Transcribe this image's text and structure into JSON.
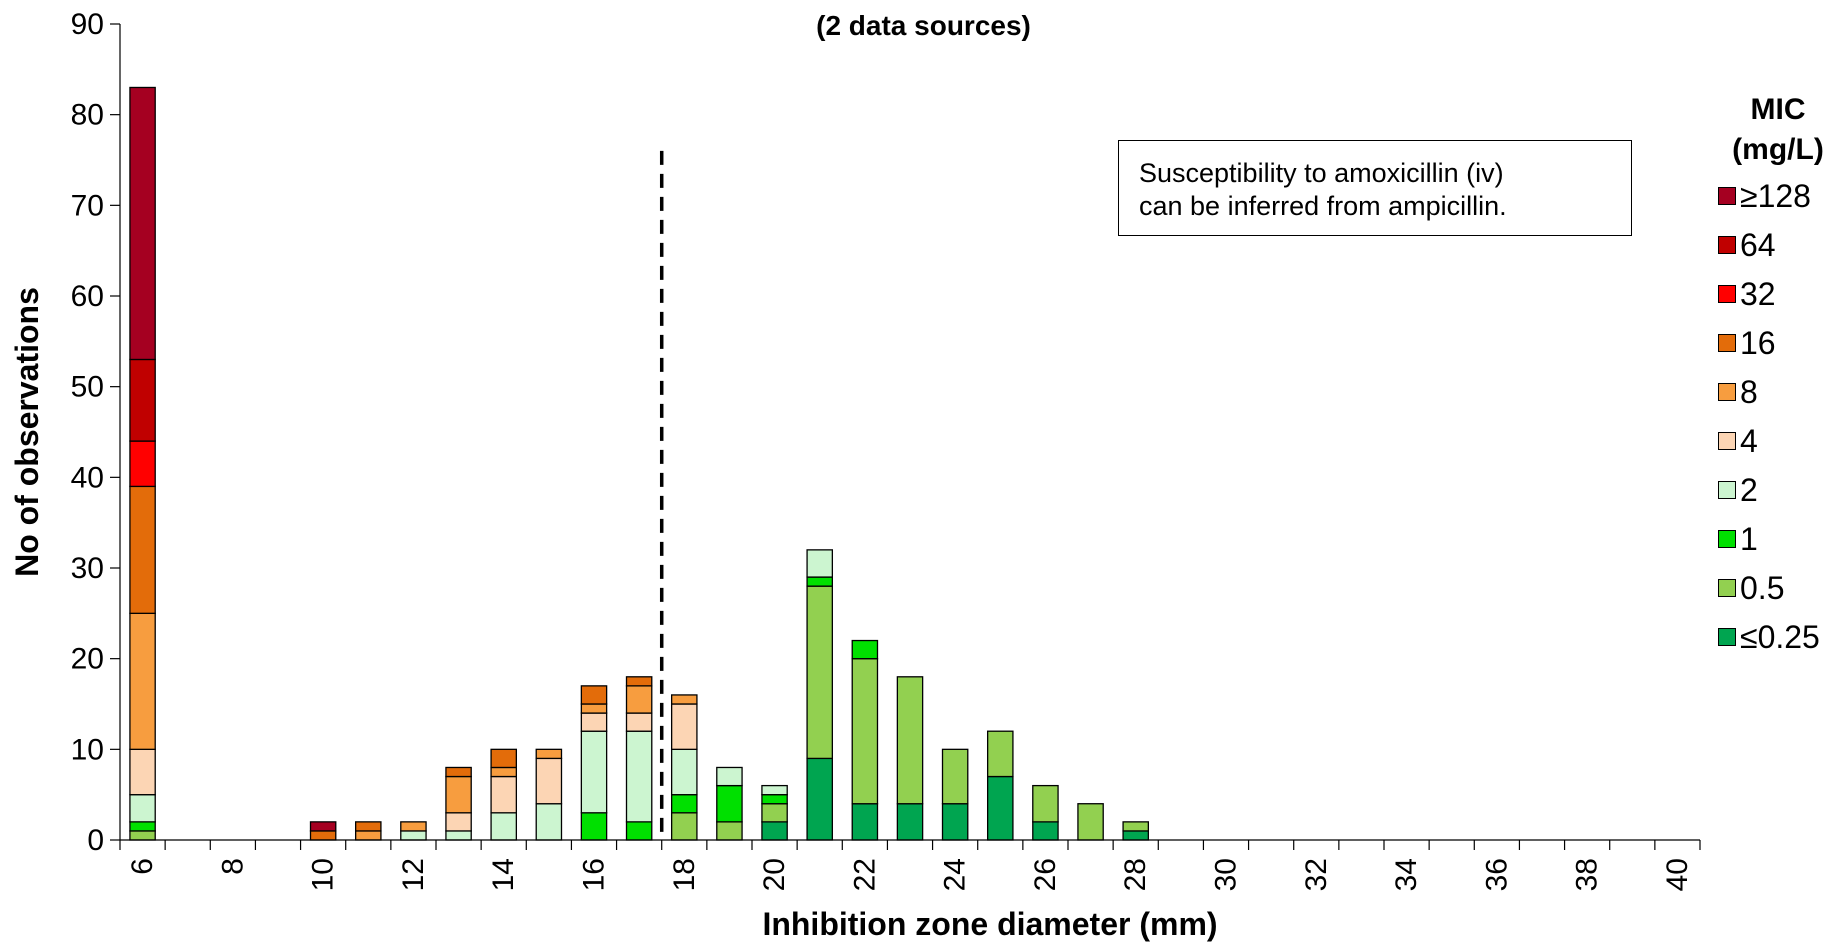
{
  "chart_data": {
    "type": "bar",
    "subtitle": "(2 data sources)",
    "xlabel": "Inhibition zone diameter (mm)",
    "ylabel": "No of observations",
    "ylim": [
      0,
      90
    ],
    "yticks": [
      0,
      10,
      20,
      30,
      40,
      50,
      60,
      70,
      80,
      90
    ],
    "xlim": [
      6,
      40
    ],
    "xtick_labels": [
      "6",
      "8",
      "10",
      "12",
      "14",
      "16",
      "18",
      "20",
      "22",
      "24",
      "26",
      "28",
      "30",
      "32",
      "34",
      "36",
      "38",
      "40"
    ],
    "stacked": true,
    "breakpoint_x": 17.5,
    "annotation": "Susceptibility to amoxicillin (iv) can be inferred from ampicillin.",
    "annotation_lines": [
      "Susceptibility to amoxicillin (iv)",
      "can be inferred from ampicillin."
    ],
    "legend_title_lines": [
      "MIC",
      "(mg/L)"
    ],
    "legend_position": "right",
    "x": [
      6,
      10,
      11,
      12,
      13,
      14,
      15,
      16,
      17,
      18,
      19,
      20,
      21,
      22,
      23,
      24,
      25,
      26,
      27,
      28
    ],
    "series": [
      {
        "name": "≤0.25",
        "color": "#00a550",
        "values": [
          0,
          0,
          0,
          0,
          0,
          0,
          0,
          0,
          0,
          0,
          0,
          2,
          9,
          4,
          4,
          4,
          7,
          2,
          0,
          1
        ]
      },
      {
        "name": "0.5",
        "color": "#92d050",
        "values": [
          1,
          0,
          0,
          0,
          0,
          0,
          0,
          0,
          0,
          3,
          2,
          2,
          19,
          16,
          14,
          6,
          5,
          4,
          4,
          1
        ]
      },
      {
        "name": "1",
        "color": "#00e000",
        "values": [
          1,
          0,
          0,
          0,
          0,
          0,
          0,
          3,
          2,
          2,
          4,
          1,
          1,
          2,
          0,
          0,
          0,
          0,
          0,
          0
        ]
      },
      {
        "name": "2",
        "color": "#ccf5d0",
        "values": [
          3,
          0,
          0,
          1,
          1,
          3,
          4,
          9,
          10,
          5,
          2,
          1,
          3,
          0,
          0,
          0,
          0,
          0,
          0,
          0
        ]
      },
      {
        "name": "4",
        "color": "#fcd5b4",
        "values": [
          5,
          0,
          0,
          0,
          2,
          4,
          5,
          2,
          2,
          5,
          0,
          0,
          0,
          0,
          0,
          0,
          0,
          0,
          0,
          0
        ]
      },
      {
        "name": "8",
        "color": "#f79d3f",
        "values": [
          15,
          0,
          1,
          1,
          4,
          1,
          1,
          1,
          3,
          1,
          0,
          0,
          0,
          0,
          0,
          0,
          0,
          0,
          0,
          0
        ]
      },
      {
        "name": "16",
        "color": "#e36c0a",
        "values": [
          14,
          1,
          1,
          0,
          1,
          2,
          0,
          2,
          1,
          0,
          0,
          0,
          0,
          0,
          0,
          0,
          0,
          0,
          0,
          0
        ]
      },
      {
        "name": "32",
        "color": "#ff0000",
        "values": [
          5,
          0,
          0,
          0,
          0,
          0,
          0,
          0,
          0,
          0,
          0,
          0,
          0,
          0,
          0,
          0,
          0,
          0,
          0,
          0
        ]
      },
      {
        "name": "64",
        "color": "#c00000",
        "values": [
          9,
          0,
          0,
          0,
          0,
          0,
          0,
          0,
          0,
          0,
          0,
          0,
          0,
          0,
          0,
          0,
          0,
          0,
          0,
          0
        ]
      },
      {
        "name": "≥128",
        "color": "#a50021",
        "values": [
          30,
          1,
          0,
          0,
          0,
          0,
          0,
          0,
          0,
          0,
          0,
          0,
          0,
          0,
          0,
          0,
          0,
          0,
          0,
          0
        ]
      }
    ]
  }
}
